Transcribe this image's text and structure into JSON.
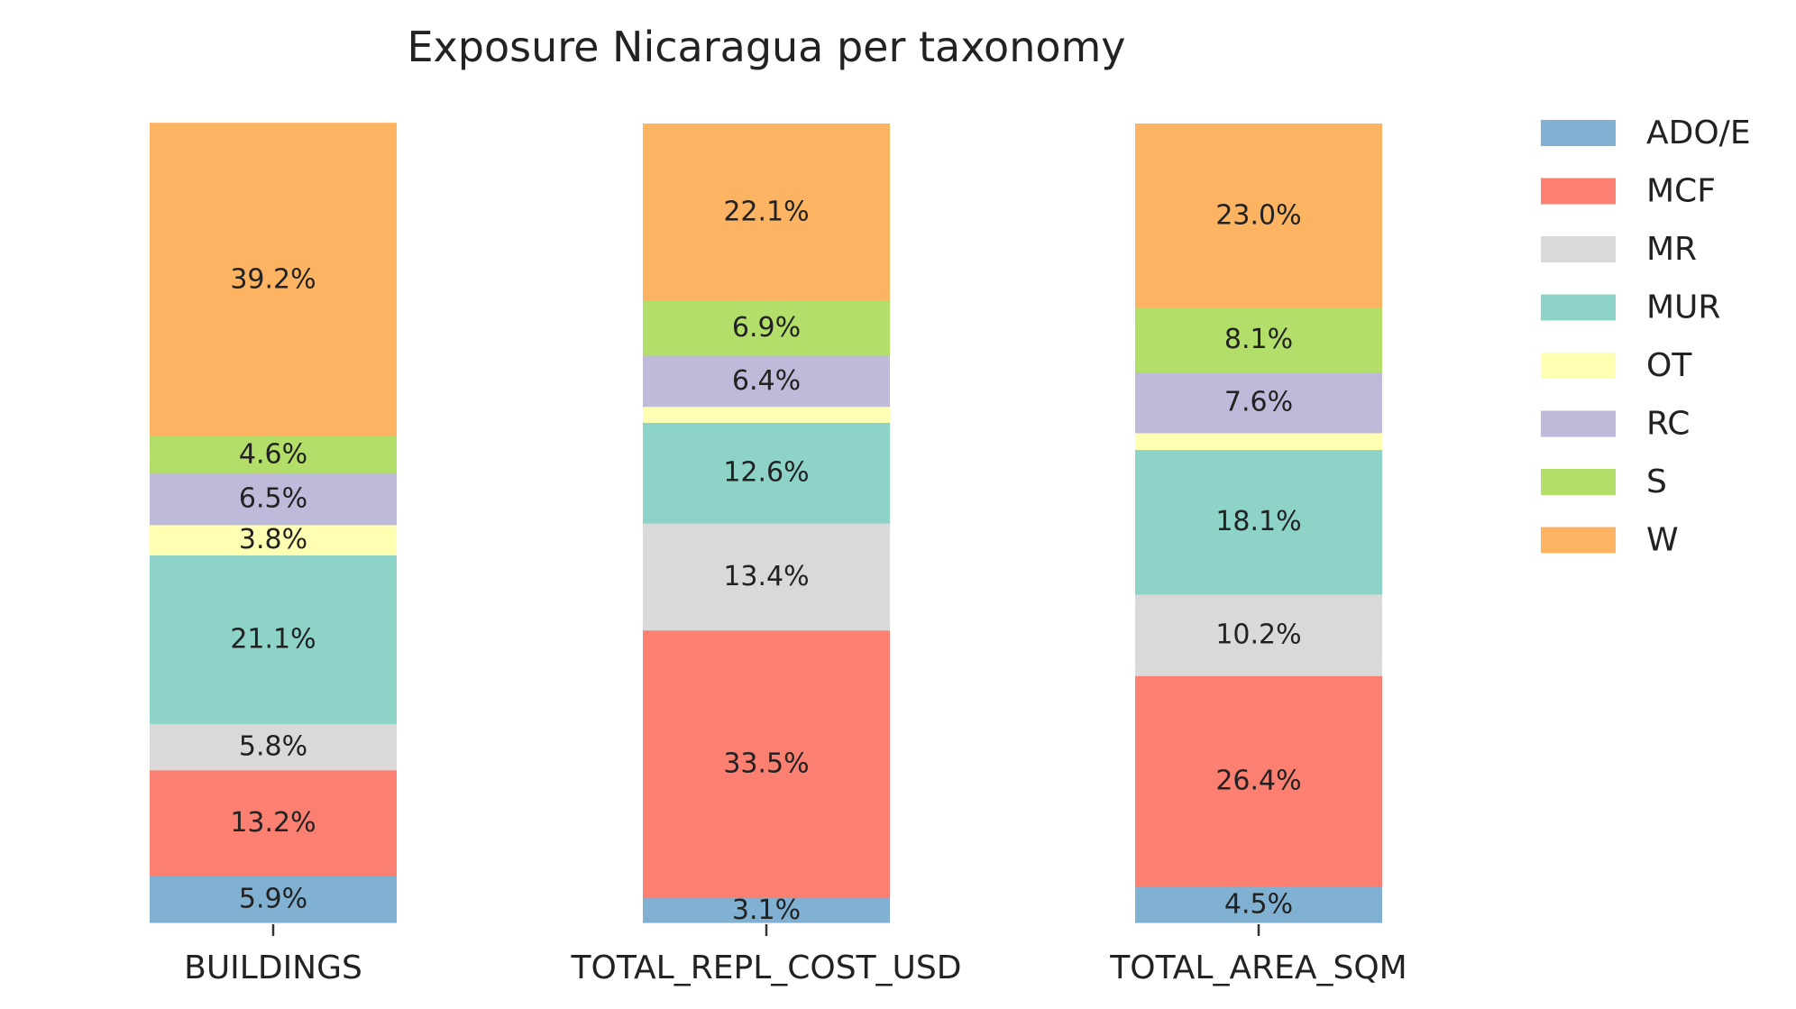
{
  "chart_data": {
    "type": "bar",
    "stacked": true,
    "percent": true,
    "title": "Exposure Nicaragua per taxonomy",
    "xlabel": "",
    "ylabel": "",
    "ylim": [
      0,
      100
    ],
    "grid": false,
    "legend_position": "right",
    "categories": [
      "BUILDINGS",
      "TOTAL_REPL_COST_USD",
      "TOTAL_AREA_SQM"
    ],
    "series": [
      {
        "name": "ADO/E",
        "color": "#80b1d3",
        "values": [
          5.9,
          3.1,
          4.5
        ],
        "labels": [
          "5.9%",
          "3.1%",
          "4.5%"
        ]
      },
      {
        "name": "MCF",
        "color": "#fb8072",
        "values": [
          13.2,
          33.5,
          26.4
        ],
        "labels": [
          "13.2%",
          "33.5%",
          "26.4%"
        ]
      },
      {
        "name": "MR",
        "color": "#d9d9d9",
        "values": [
          5.8,
          13.4,
          10.2
        ],
        "labels": [
          "5.8%",
          "13.4%",
          "10.2%"
        ]
      },
      {
        "name": "MUR",
        "color": "#8dd3c7",
        "values": [
          21.1,
          12.6,
          18.1
        ],
        "labels": [
          "21.1%",
          "12.6%",
          "18.1%"
        ]
      },
      {
        "name": "OT",
        "color": "#ffffb3",
        "values": [
          3.8,
          2.0,
          2.1
        ],
        "labels": [
          "3.8%",
          "",
          ""
        ]
      },
      {
        "name": "RC",
        "color": "#bebada",
        "values": [
          6.5,
          6.4,
          7.6
        ],
        "labels": [
          "6.5%",
          "6.4%",
          "7.6%"
        ]
      },
      {
        "name": "S",
        "color": "#b3de69",
        "values": [
          4.6,
          6.9,
          8.1
        ],
        "labels": [
          "4.6%",
          "6.9%",
          "8.1%"
        ]
      },
      {
        "name": "W",
        "color": "#fdb462",
        "values": [
          39.2,
          22.1,
          23.0
        ],
        "labels": [
          "39.2%",
          "22.1%",
          "23.0%"
        ]
      }
    ]
  }
}
